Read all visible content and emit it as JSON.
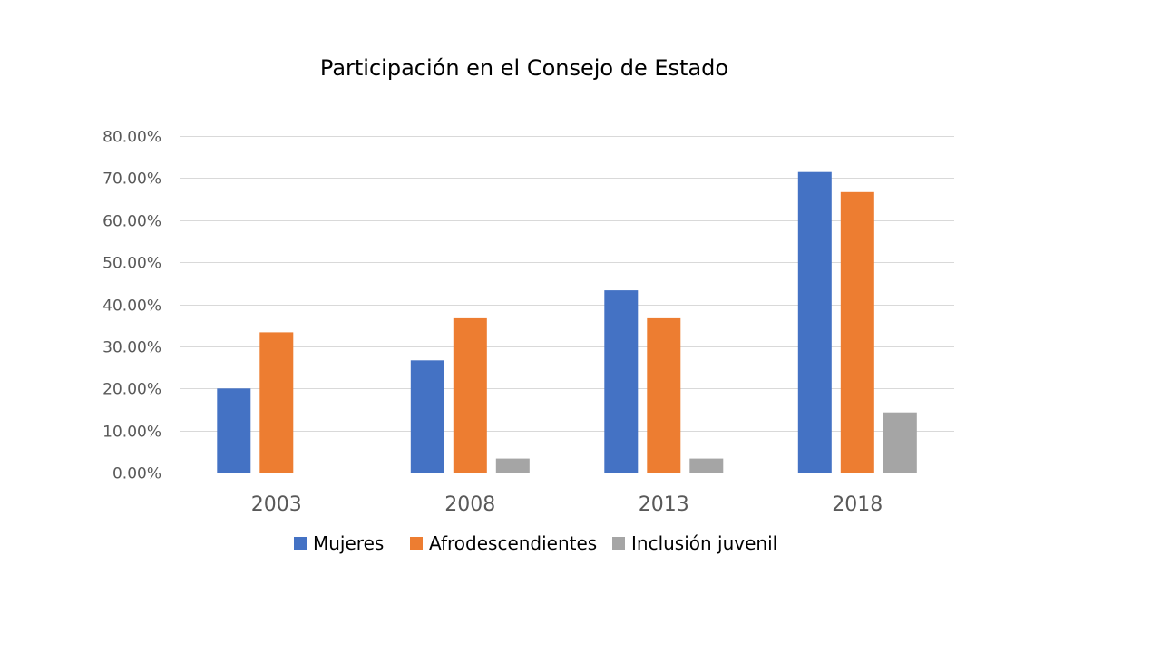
{
  "chart_data": {
    "type": "bar",
    "title": "Participación en el Consejo de Estado",
    "xlabel": "",
    "ylabel": "",
    "categories": [
      "2003",
      "2008",
      "2013",
      "2018"
    ],
    "series": [
      {
        "name": "Mujeres",
        "color": "#4472C4",
        "values": [
          0.2,
          0.2667,
          0.4333,
          0.7143
        ]
      },
      {
        "name": "Afrodescendientes",
        "color": "#ED7D31",
        "values": [
          0.3333,
          0.3667,
          0.3667,
          0.6667
        ]
      },
      {
        "name": "Inclusión juvenil",
        "color": "#A5A5A5",
        "values": [
          0.0,
          0.0333,
          0.0333,
          0.1429
        ]
      }
    ],
    "ylim": [
      0,
      0.8
    ],
    "y_ticks": [
      0,
      0.1,
      0.2,
      0.3,
      0.4,
      0.5,
      0.6,
      0.7,
      0.8
    ],
    "y_tick_labels": [
      "0.00%",
      "10.00%",
      "20.00%",
      "30.00%",
      "40.00%",
      "50.00%",
      "60.00%",
      "70.00%",
      "80.00%"
    ],
    "grid": true,
    "legend_position": "bottom"
  }
}
